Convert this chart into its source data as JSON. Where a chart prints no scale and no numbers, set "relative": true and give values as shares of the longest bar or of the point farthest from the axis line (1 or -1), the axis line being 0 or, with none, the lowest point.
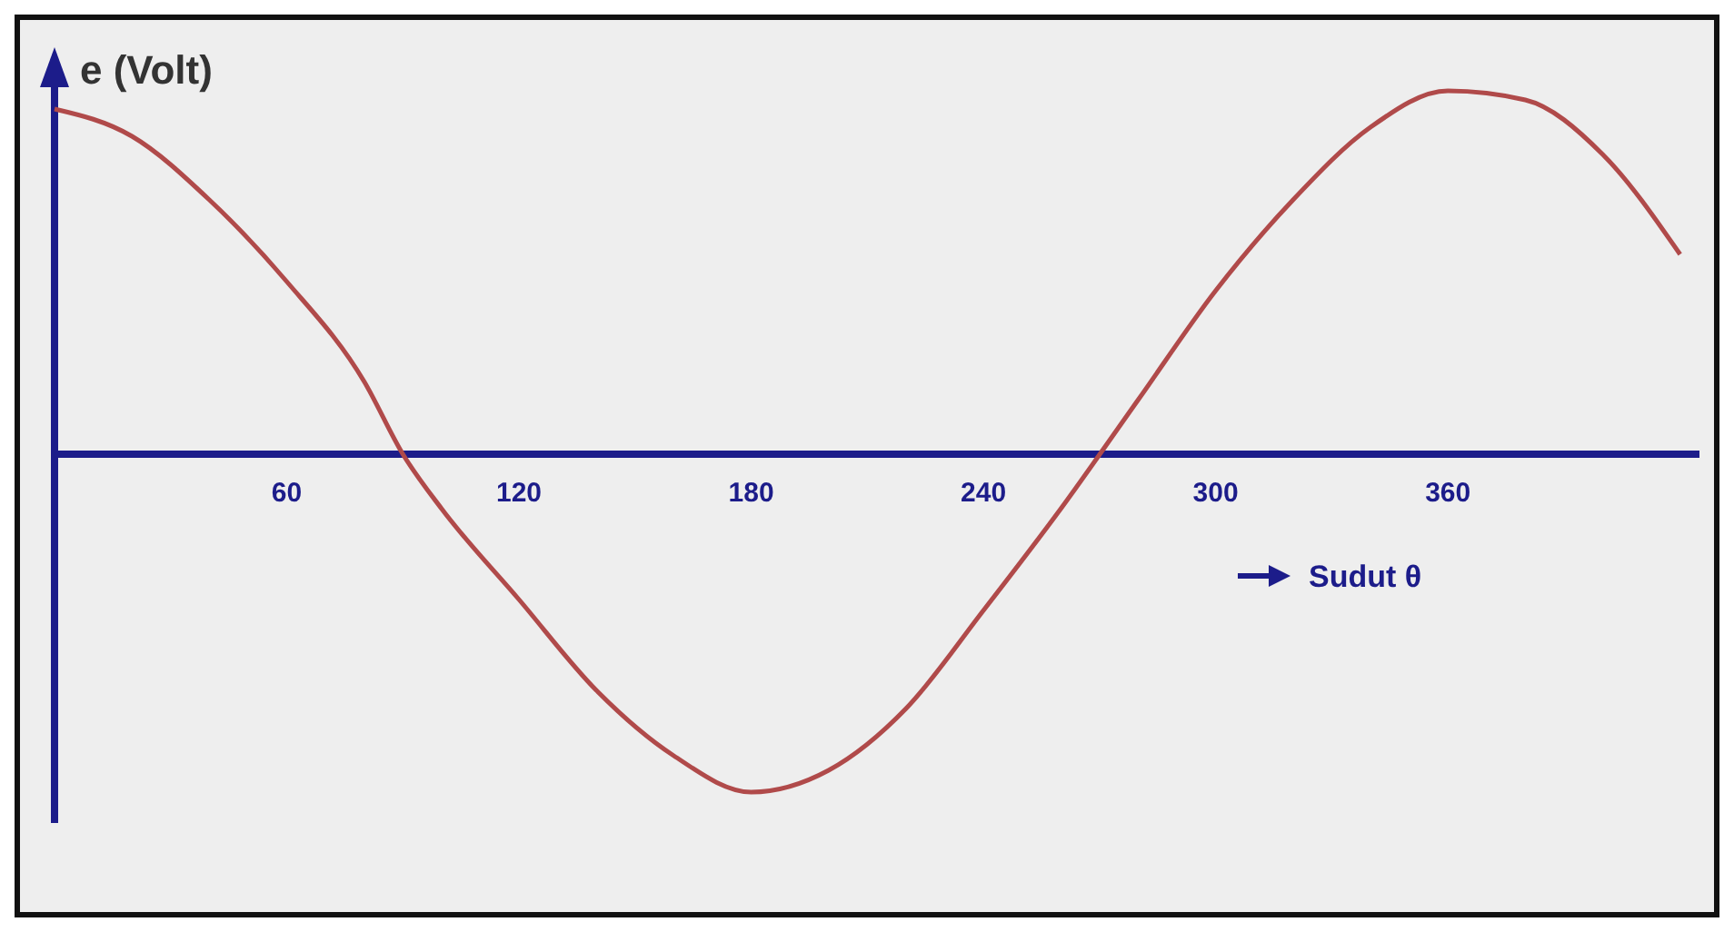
{
  "chart_data": {
    "type": "line",
    "relative": true,
    "ylabel": "e (Volt)",
    "xlabel": "Sudut θ",
    "x": [
      0,
      20,
      40,
      60,
      80,
      90,
      100,
      120,
      140,
      160,
      180,
      200,
      220,
      240,
      260,
      280,
      300,
      320,
      340,
      360,
      380,
      400,
      420
    ],
    "xlim": [
      0,
      425
    ],
    "xticks": [
      60,
      120,
      180,
      240,
      300,
      360
    ],
    "series": [
      {
        "color": "#b04a4a",
        "values": [
          0.95,
          0.875,
          0.7,
          0.475,
          0.2,
          0,
          -0.15,
          -0.4,
          -0.65,
          -0.83,
          -0.93,
          -0.87,
          -0.7,
          -0.43,
          -0.15,
          0.15,
          0.45,
          0.7,
          0.9,
          1,
          0.975,
          0.825,
          0.55
        ]
      }
    ],
    "grid": false,
    "marker": "none",
    "line_style": "solid"
  }
}
